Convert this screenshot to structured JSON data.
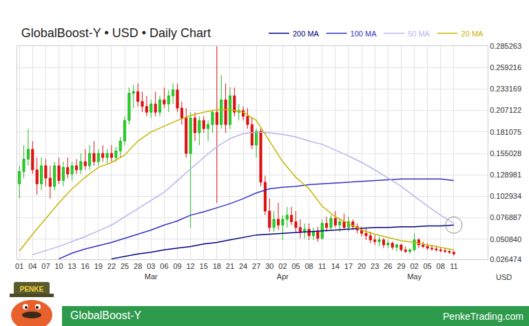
{
  "chart_data": {
    "type": "candlestick",
    "title": "GlobalBoost-Y • USD • Daily Chart",
    "unit_label": "USD",
    "footer": {
      "left": "GlobalBoost-Y",
      "right": "PenkeTrading.com"
    },
    "logo_text": "PENKE",
    "categories": [
      "01",
      null,
      null,
      "04",
      null,
      null,
      "07",
      null,
      null,
      "10",
      null,
      null,
      "13",
      null,
      null,
      "16",
      null,
      null,
      "19",
      null,
      null,
      "22",
      null,
      null,
      "25",
      null,
      null,
      "28",
      null,
      null,
      "03",
      null,
      null,
      "06",
      null,
      null,
      "09",
      null,
      null,
      "12",
      null,
      null,
      "15",
      null,
      null,
      "18",
      null,
      null,
      "21",
      null,
      null,
      "24",
      null,
      null,
      "27",
      null,
      null,
      "30",
      null,
      null,
      "02",
      null,
      null,
      "05",
      null,
      null,
      "08",
      null,
      null,
      "11",
      null,
      null,
      "14",
      null,
      null,
      "17",
      null,
      null,
      "20",
      null,
      null,
      "23",
      null,
      null,
      "26",
      null,
      null,
      "29",
      null,
      null,
      "02",
      null,
      null,
      "05",
      null,
      null,
      "08",
      null,
      null,
      "11"
    ],
    "month_labels": [
      null,
      null,
      null,
      null,
      null,
      null,
      null,
      null,
      null,
      null,
      null,
      null,
      null,
      null,
      null,
      null,
      null,
      null,
      null,
      null,
      null,
      null,
      null,
      null,
      null,
      null,
      null,
      null,
      null,
      null,
      "Mar",
      null,
      null,
      null,
      null,
      null,
      null,
      null,
      null,
      null,
      null,
      null,
      null,
      null,
      null,
      null,
      null,
      null,
      null,
      null,
      null,
      null,
      null,
      null,
      null,
      null,
      null,
      null,
      null,
      null,
      "Apr",
      null,
      null,
      null,
      null,
      null,
      null,
      null,
      null,
      null,
      null,
      null,
      null,
      null,
      null,
      null,
      null,
      null,
      null,
      null,
      null,
      null,
      null,
      null,
      null,
      null,
      null,
      null,
      null,
      null,
      "May",
      null,
      null,
      null,
      null,
      null,
      null,
      null,
      null,
      null
    ],
    "ohlc": [
      [
        0.118,
        0.14,
        0.1,
        0.133
      ],
      [
        0.133,
        0.165,
        0.125,
        0.148
      ],
      [
        0.148,
        0.185,
        0.14,
        0.16
      ],
      [
        0.16,
        0.17,
        0.13,
        0.135
      ],
      [
        0.135,
        0.15,
        0.105,
        0.118
      ],
      [
        0.118,
        0.15,
        0.11,
        0.14
      ],
      [
        0.14,
        0.148,
        0.115,
        0.125
      ],
      [
        0.125,
        0.14,
        0.1,
        0.115
      ],
      [
        0.115,
        0.145,
        0.11,
        0.14
      ],
      [
        0.14,
        0.15,
        0.118,
        0.122
      ],
      [
        0.122,
        0.145,
        0.115,
        0.138
      ],
      [
        0.138,
        0.15,
        0.125,
        0.13
      ],
      [
        0.13,
        0.145,
        0.122,
        0.14
      ],
      [
        0.14,
        0.148,
        0.13,
        0.135
      ],
      [
        0.135,
        0.155,
        0.13,
        0.145
      ],
      [
        0.145,
        0.16,
        0.135,
        0.14
      ],
      [
        0.14,
        0.165,
        0.135,
        0.155
      ],
      [
        0.155,
        0.17,
        0.14,
        0.145
      ],
      [
        0.145,
        0.16,
        0.14,
        0.155
      ],
      [
        0.155,
        0.165,
        0.145,
        0.15
      ],
      [
        0.15,
        0.16,
        0.143,
        0.155
      ],
      [
        0.155,
        0.165,
        0.145,
        0.15
      ],
      [
        0.15,
        0.163,
        0.145,
        0.158
      ],
      [
        0.158,
        0.175,
        0.15,
        0.17
      ],
      [
        0.17,
        0.2,
        0.165,
        0.195
      ],
      [
        0.195,
        0.235,
        0.19,
        0.228
      ],
      [
        0.228,
        0.238,
        0.21,
        0.23
      ],
      [
        0.23,
        0.24,
        0.212,
        0.218
      ],
      [
        0.218,
        0.23,
        0.205,
        0.212
      ],
      [
        0.212,
        0.225,
        0.2,
        0.205
      ],
      [
        0.205,
        0.22,
        0.198,
        0.215
      ],
      [
        0.215,
        0.23,
        0.2,
        0.205
      ],
      [
        0.205,
        0.225,
        0.2,
        0.22
      ],
      [
        0.22,
        0.235,
        0.21,
        0.215
      ],
      [
        0.215,
        0.232,
        0.205,
        0.225
      ],
      [
        0.225,
        0.24,
        0.215,
        0.232
      ],
      [
        0.232,
        0.24,
        0.205,
        0.21
      ],
      [
        0.21,
        0.218,
        0.19,
        0.198
      ],
      [
        0.198,
        0.21,
        0.15,
        0.155
      ],
      [
        0.155,
        0.205,
        0.065,
        0.198
      ],
      [
        0.198,
        0.205,
        0.17,
        0.18
      ],
      [
        0.18,
        0.2,
        0.165,
        0.195
      ],
      [
        0.195,
        0.2,
        0.18,
        0.185
      ],
      [
        0.185,
        0.195,
        0.17,
        0.19
      ],
      [
        0.19,
        0.208,
        0.18,
        0.205
      ],
      [
        0.205,
        0.285,
        0.095,
        0.19
      ],
      [
        0.19,
        0.25,
        0.185,
        0.22
      ],
      [
        0.22,
        0.24,
        0.18,
        0.19
      ],
      [
        0.19,
        0.235,
        0.185,
        0.225
      ],
      [
        0.225,
        0.235,
        0.2,
        0.205
      ],
      [
        0.205,
        0.215,
        0.195,
        0.207
      ],
      [
        0.207,
        0.212,
        0.195,
        0.2
      ],
      [
        0.2,
        0.21,
        0.185,
        0.19
      ],
      [
        0.19,
        0.198,
        0.16,
        0.165
      ],
      [
        0.165,
        0.185,
        0.15,
        0.182
      ],
      [
        0.182,
        0.185,
        0.115,
        0.12
      ],
      [
        0.12,
        0.128,
        0.08,
        0.085
      ],
      [
        0.085,
        0.1,
        0.06,
        0.065
      ],
      [
        0.065,
        0.085,
        0.06,
        0.075
      ],
      [
        0.075,
        0.095,
        0.062,
        0.068
      ],
      [
        0.068,
        0.08,
        0.05,
        0.075
      ],
      [
        0.075,
        0.09,
        0.065,
        0.08
      ],
      [
        0.08,
        0.09,
        0.068,
        0.072
      ],
      [
        0.072,
        0.085,
        0.06,
        0.065
      ],
      [
        0.065,
        0.075,
        0.052,
        0.06
      ],
      [
        0.06,
        0.07,
        0.052,
        0.063
      ],
      [
        0.063,
        0.07,
        0.05,
        0.055
      ],
      [
        0.055,
        0.065,
        0.05,
        0.06
      ],
      [
        0.06,
        0.066,
        0.048,
        0.052
      ],
      [
        0.052,
        0.075,
        0.05,
        0.07
      ],
      [
        0.07,
        0.078,
        0.06,
        0.065
      ],
      [
        0.065,
        0.08,
        0.062,
        0.076
      ],
      [
        0.076,
        0.085,
        0.065,
        0.068
      ],
      [
        0.068,
        0.076,
        0.06,
        0.072
      ],
      [
        0.072,
        0.082,
        0.063,
        0.065
      ],
      [
        0.065,
        0.078,
        0.06,
        0.072
      ],
      [
        0.072,
        0.075,
        0.062,
        0.066
      ],
      [
        0.066,
        0.07,
        0.058,
        0.062
      ],
      [
        0.062,
        0.066,
        0.054,
        0.058
      ],
      [
        0.058,
        0.065,
        0.05,
        0.055
      ],
      [
        0.055,
        0.06,
        0.046,
        0.05
      ],
      [
        0.05,
        0.056,
        0.044,
        0.048
      ],
      [
        0.048,
        0.054,
        0.042,
        0.05
      ],
      [
        0.05,
        0.052,
        0.04,
        0.044
      ],
      [
        0.044,
        0.05,
        0.04,
        0.046
      ],
      [
        0.046,
        0.048,
        0.038,
        0.041
      ],
      [
        0.041,
        0.046,
        0.036,
        0.044
      ],
      [
        0.044,
        0.045,
        0.036,
        0.038
      ],
      [
        0.038,
        0.042,
        0.034,
        0.036
      ],
      [
        0.036,
        0.04,
        0.033,
        0.038
      ],
      [
        0.038,
        0.058,
        0.036,
        0.05
      ],
      [
        0.05,
        0.052,
        0.04,
        0.044
      ],
      [
        0.044,
        0.048,
        0.04,
        0.042
      ],
      [
        0.042,
        0.046,
        0.038,
        0.04
      ],
      [
        0.04,
        0.044,
        0.037,
        0.039
      ],
      [
        0.039,
        0.043,
        0.036,
        0.038
      ],
      [
        0.038,
        0.041,
        0.035,
        0.037
      ],
      [
        0.037,
        0.04,
        0.034,
        0.036
      ],
      [
        0.036,
        0.038,
        0.033,
        0.035
      ],
      [
        0.035,
        0.037,
        0.031,
        0.033
      ]
    ],
    "series": [
      {
        "name": "200 MA",
        "color": "#000080",
        "values": [
          null,
          null,
          null,
          null,
          null,
          null,
          null,
          null,
          null,
          null,
          null,
          null,
          null,
          null,
          null,
          null,
          null,
          null,
          null,
          null,
          null,
          0.027,
          null,
          null,
          0.03,
          null,
          null,
          0.033,
          null,
          null,
          0.035,
          null,
          null,
          0.038,
          null,
          null,
          0.04,
          null,
          null,
          0.042,
          null,
          null,
          0.045,
          null,
          null,
          0.047,
          null,
          null,
          0.05,
          null,
          null,
          0.053,
          null,
          null,
          0.056,
          null,
          null,
          0.057,
          null,
          null,
          0.058,
          null,
          null,
          0.059,
          null,
          null,
          0.06,
          null,
          null,
          0.061,
          null,
          null,
          0.062,
          null,
          null,
          0.063,
          null,
          null,
          0.064,
          null,
          null,
          0.065,
          null,
          null,
          0.065,
          null,
          null,
          0.066,
          null,
          null,
          0.066,
          null,
          null,
          0.067,
          null,
          null,
          0.067,
          null,
          null,
          0.068
        ]
      },
      {
        "name": "100 MA",
        "color": "#3030c8",
        "values": [
          null,
          null,
          null,
          null,
          null,
          null,
          null,
          null,
          null,
          0.027,
          null,
          null,
          0.034,
          null,
          null,
          0.039,
          null,
          null,
          0.043,
          null,
          null,
          0.047,
          null,
          null,
          0.052,
          null,
          null,
          0.057,
          null,
          null,
          0.062,
          null,
          null,
          0.068,
          null,
          null,
          0.073,
          null,
          null,
          0.08,
          null,
          null,
          0.084,
          null,
          null,
          0.089,
          null,
          null,
          0.094,
          null,
          null,
          0.1,
          null,
          null,
          0.107,
          null,
          null,
          0.112,
          null,
          null,
          0.114,
          null,
          null,
          0.115,
          null,
          null,
          0.117,
          null,
          null,
          0.118,
          null,
          null,
          0.119,
          null,
          null,
          0.12,
          null,
          null,
          0.121,
          null,
          null,
          0.122,
          null,
          null,
          0.123,
          null,
          null,
          0.124,
          null,
          null,
          0.124,
          null,
          null,
          0.124,
          null,
          null,
          0.124,
          null,
          null,
          0.122
        ]
      },
      {
        "name": "50 MA",
        "color": "#b4b4f0",
        "values": [
          null,
          null,
          null,
          0.032,
          null,
          null,
          0.037,
          null,
          null,
          0.042,
          null,
          null,
          0.048,
          null,
          null,
          0.054,
          null,
          null,
          0.061,
          null,
          null,
          0.068,
          null,
          null,
          0.078,
          null,
          null,
          0.088,
          null,
          null,
          0.098,
          null,
          null,
          0.108,
          null,
          null,
          0.122,
          null,
          null,
          0.136,
          null,
          null,
          0.15,
          null,
          null,
          0.163,
          null,
          null,
          0.173,
          null,
          null,
          0.179,
          null,
          null,
          0.181,
          null,
          null,
          0.18,
          null,
          null,
          0.178,
          null,
          null,
          0.175,
          null,
          null,
          0.17,
          null,
          null,
          0.166,
          null,
          null,
          0.159,
          null,
          null,
          0.152,
          null,
          null,
          0.144,
          null,
          null,
          0.135,
          null,
          null,
          0.125,
          null,
          null,
          0.115,
          null,
          null,
          0.103,
          null,
          null,
          0.091,
          null,
          null,
          0.08,
          null,
          null,
          0.07
        ]
      },
      {
        "name": "20 MA",
        "color": "#c8b400",
        "values": [
          0.0365,
          null,
          null,
          0.057,
          null,
          null,
          0.076,
          null,
          null,
          0.095,
          null,
          null,
          0.112,
          null,
          null,
          0.126,
          null,
          null,
          0.138,
          null,
          null,
          0.144,
          null,
          null,
          0.153,
          null,
          null,
          0.17,
          null,
          null,
          0.181,
          null,
          null,
          0.188,
          null,
          null,
          0.195,
          null,
          null,
          0.201,
          null,
          null,
          0.205,
          null,
          null,
          0.208,
          null,
          null,
          0.208,
          null,
          null,
          0.205,
          null,
          null,
          0.195,
          null,
          null,
          0.17,
          null,
          null,
          0.145,
          null,
          null,
          0.126,
          null,
          null,
          0.112,
          null,
          null,
          0.091,
          null,
          null,
          0.078,
          null,
          null,
          0.07,
          null,
          null,
          0.062,
          null,
          null,
          0.057,
          null,
          null,
          0.053,
          null,
          null,
          0.049,
          null,
          null,
          0.047,
          null,
          null,
          0.044,
          null,
          null,
          0.041,
          null,
          null,
          0.038
        ]
      }
    ],
    "ylim": [
      0.026474,
      0.285263
    ],
    "yticks": [
      0.026474,
      {
        "value": 0.05084,
        "label": "0.050840"
      },
      0.076887,
      0.102934,
      0.128981,
      0.155028,
      0.181075,
      0.207122,
      0.233169,
      0.259216,
      0.285263
    ],
    "grid": true,
    "legend": "top right"
  }
}
